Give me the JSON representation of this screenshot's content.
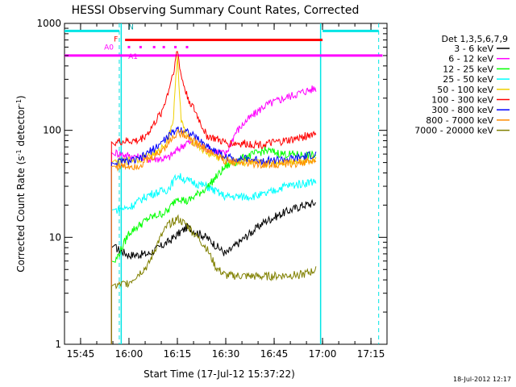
{
  "chart_data": {
    "type": "line",
    "title": "HESSI Observing Summary Count Rates, Corrected",
    "xlabel": "Start Time (17-Jul-12 15:37:22)",
    "ylabel_main": "Corrected Count Rate (s",
    "ylabel_exp1": "-1",
    "ylabel_mid": " detector",
    "ylabel_exp2": "-1",
    "ylabel_end": ")",
    "yscale": "log",
    "ylim": [
      1,
      1000
    ],
    "xlim": [
      15.667,
      17.333
    ],
    "x_ticks": [
      {
        "v": 15.75,
        "label": "15:45"
      },
      {
        "v": 16.0,
        "label": "16:00"
      },
      {
        "v": 16.25,
        "label": "16:15"
      },
      {
        "v": 16.5,
        "label": "16:30"
      },
      {
        "v": 16.75,
        "label": "16:45"
      },
      {
        "v": 17.0,
        "label": "17:00"
      },
      {
        "v": 17.25,
        "label": "17:15"
      }
    ],
    "y_ticks": [
      {
        "v": 1,
        "label": "1"
      },
      {
        "v": 10,
        "label": "10"
      },
      {
        "v": 100,
        "label": "100"
      },
      {
        "v": 1000,
        "label": "1000"
      }
    ],
    "legend_title": "Det 1,3,5,6,7,9",
    "date_stamp": "18-Jul-2012 12:17",
    "flags": {
      "labels": {
        "n": "N",
        "f": "F",
        "a0": "A0",
        "a1": "A1"
      },
      "n_intervals": [
        [
          15.667,
          15.95
        ],
        [
          17.0,
          17.29
        ]
      ],
      "f_interval": [
        15.98,
        17.0
      ],
      "a1_interval": [
        15.667,
        17.31
      ],
      "a0_dots": [
        16.0,
        16.06,
        16.13,
        16.18,
        16.24,
        16.3
      ],
      "vlines": [
        15.95,
        17.29
      ],
      "solid_vlines": [
        15.96,
        16.99
      ],
      "f_value": 700,
      "a0_value": 600,
      "a1_value": 500,
      "n_value": 850
    },
    "series": [
      {
        "name": "3 - 6 keV",
        "color": "#000000",
        "points": [
          [
            15.93,
            8
          ],
          [
            16.0,
            6.8
          ],
          [
            16.1,
            7
          ],
          [
            16.2,
            9
          ],
          [
            16.3,
            12.5
          ],
          [
            16.4,
            10
          ],
          [
            16.5,
            7
          ],
          [
            16.6,
            10
          ],
          [
            16.7,
            14
          ],
          [
            16.8,
            17
          ],
          [
            16.9,
            20
          ],
          [
            16.97,
            21
          ]
        ]
      },
      {
        "name": "6 - 12 keV",
        "color": "#ff00ff",
        "points": [
          [
            15.93,
            62
          ],
          [
            16.0,
            58
          ],
          [
            16.1,
            54
          ],
          [
            16.2,
            55
          ],
          [
            16.3,
            78
          ],
          [
            16.4,
            68
          ],
          [
            16.5,
            60
          ],
          [
            16.55,
            95
          ],
          [
            16.6,
            120
          ],
          [
            16.7,
            170
          ],
          [
            16.8,
            200
          ],
          [
            16.9,
            230
          ],
          [
            16.97,
            250
          ]
        ]
      },
      {
        "name": "12 - 25 keV",
        "color": "#00ff00",
        "points": [
          [
            15.93,
            6
          ],
          [
            16.0,
            11
          ],
          [
            16.1,
            15
          ],
          [
            16.2,
            17.5
          ],
          [
            16.25,
            24
          ],
          [
            16.3,
            21.5
          ],
          [
            16.4,
            29
          ],
          [
            16.5,
            46
          ],
          [
            16.6,
            56
          ],
          [
            16.7,
            65
          ],
          [
            16.8,
            60
          ],
          [
            16.97,
            58
          ]
        ]
      },
      {
        "name": "25 - 50 keV",
        "color": "#00ffff",
        "points": [
          [
            15.93,
            18
          ],
          [
            16.0,
            19
          ],
          [
            16.1,
            25
          ],
          [
            16.2,
            28
          ],
          [
            16.25,
            38
          ],
          [
            16.3,
            34
          ],
          [
            16.4,
            30
          ],
          [
            16.5,
            24
          ],
          [
            16.6,
            24
          ],
          [
            16.7,
            25
          ],
          [
            16.8,
            30
          ],
          [
            16.9,
            32
          ],
          [
            16.97,
            34
          ]
        ]
      },
      {
        "name": "50 - 100 keV",
        "color": "#f0d000",
        "points": [
          [
            15.93,
            50
          ],
          [
            16.05,
            54
          ],
          [
            16.15,
            62
          ],
          [
            16.2,
            82
          ],
          [
            16.23,
            130
          ],
          [
            16.25,
            520
          ],
          [
            16.27,
            120
          ],
          [
            16.3,
            88
          ],
          [
            16.4,
            62
          ],
          [
            16.5,
            52
          ],
          [
            16.7,
            49
          ],
          [
            16.97,
            54
          ]
        ]
      },
      {
        "name": "100 - 300 keV",
        "color": "#ff0000",
        "points": [
          [
            15.93,
            78
          ],
          [
            16.05,
            80
          ],
          [
            16.1,
            95
          ],
          [
            16.17,
            150
          ],
          [
            16.2,
            220
          ],
          [
            16.23,
            360
          ],
          [
            16.25,
            560
          ],
          [
            16.27,
            320
          ],
          [
            16.3,
            210
          ],
          [
            16.35,
            140
          ],
          [
            16.4,
            90
          ],
          [
            16.5,
            76
          ],
          [
            16.7,
            74
          ],
          [
            16.85,
            82
          ],
          [
            16.97,
            95
          ]
        ]
      },
      {
        "name": "300 - 800 keV",
        "color": "#0000ff",
        "points": [
          [
            15.93,
            50
          ],
          [
            16.05,
            53
          ],
          [
            16.15,
            72
          ],
          [
            16.25,
            104
          ],
          [
            16.3,
            98
          ],
          [
            16.4,
            72
          ],
          [
            16.5,
            56
          ],
          [
            16.7,
            52
          ],
          [
            16.85,
            54
          ],
          [
            16.97,
            60
          ]
        ]
      },
      {
        "name": "800 - 7000 keV",
        "color": "#ff8c00",
        "points": [
          [
            15.93,
            46
          ],
          [
            16.05,
            47
          ],
          [
            16.15,
            60
          ],
          [
            16.25,
            96
          ],
          [
            16.3,
            90
          ],
          [
            16.4,
            66
          ],
          [
            16.5,
            52
          ],
          [
            16.7,
            48
          ],
          [
            16.85,
            49
          ],
          [
            16.97,
            52
          ]
        ]
      },
      {
        "name": "7000 - 20000 keV",
        "color": "#808000",
        "points": [
          [
            15.93,
            3.5
          ],
          [
            16.0,
            3.8
          ],
          [
            16.1,
            5.5
          ],
          [
            16.15,
            9
          ],
          [
            16.2,
            13
          ],
          [
            16.25,
            15
          ],
          [
            16.3,
            13
          ],
          [
            16.4,
            8
          ],
          [
            16.45,
            5.2
          ],
          [
            16.5,
            4.4
          ],
          [
            16.7,
            4.3
          ],
          [
            16.9,
            4.5
          ],
          [
            16.97,
            5
          ]
        ]
      }
    ]
  }
}
